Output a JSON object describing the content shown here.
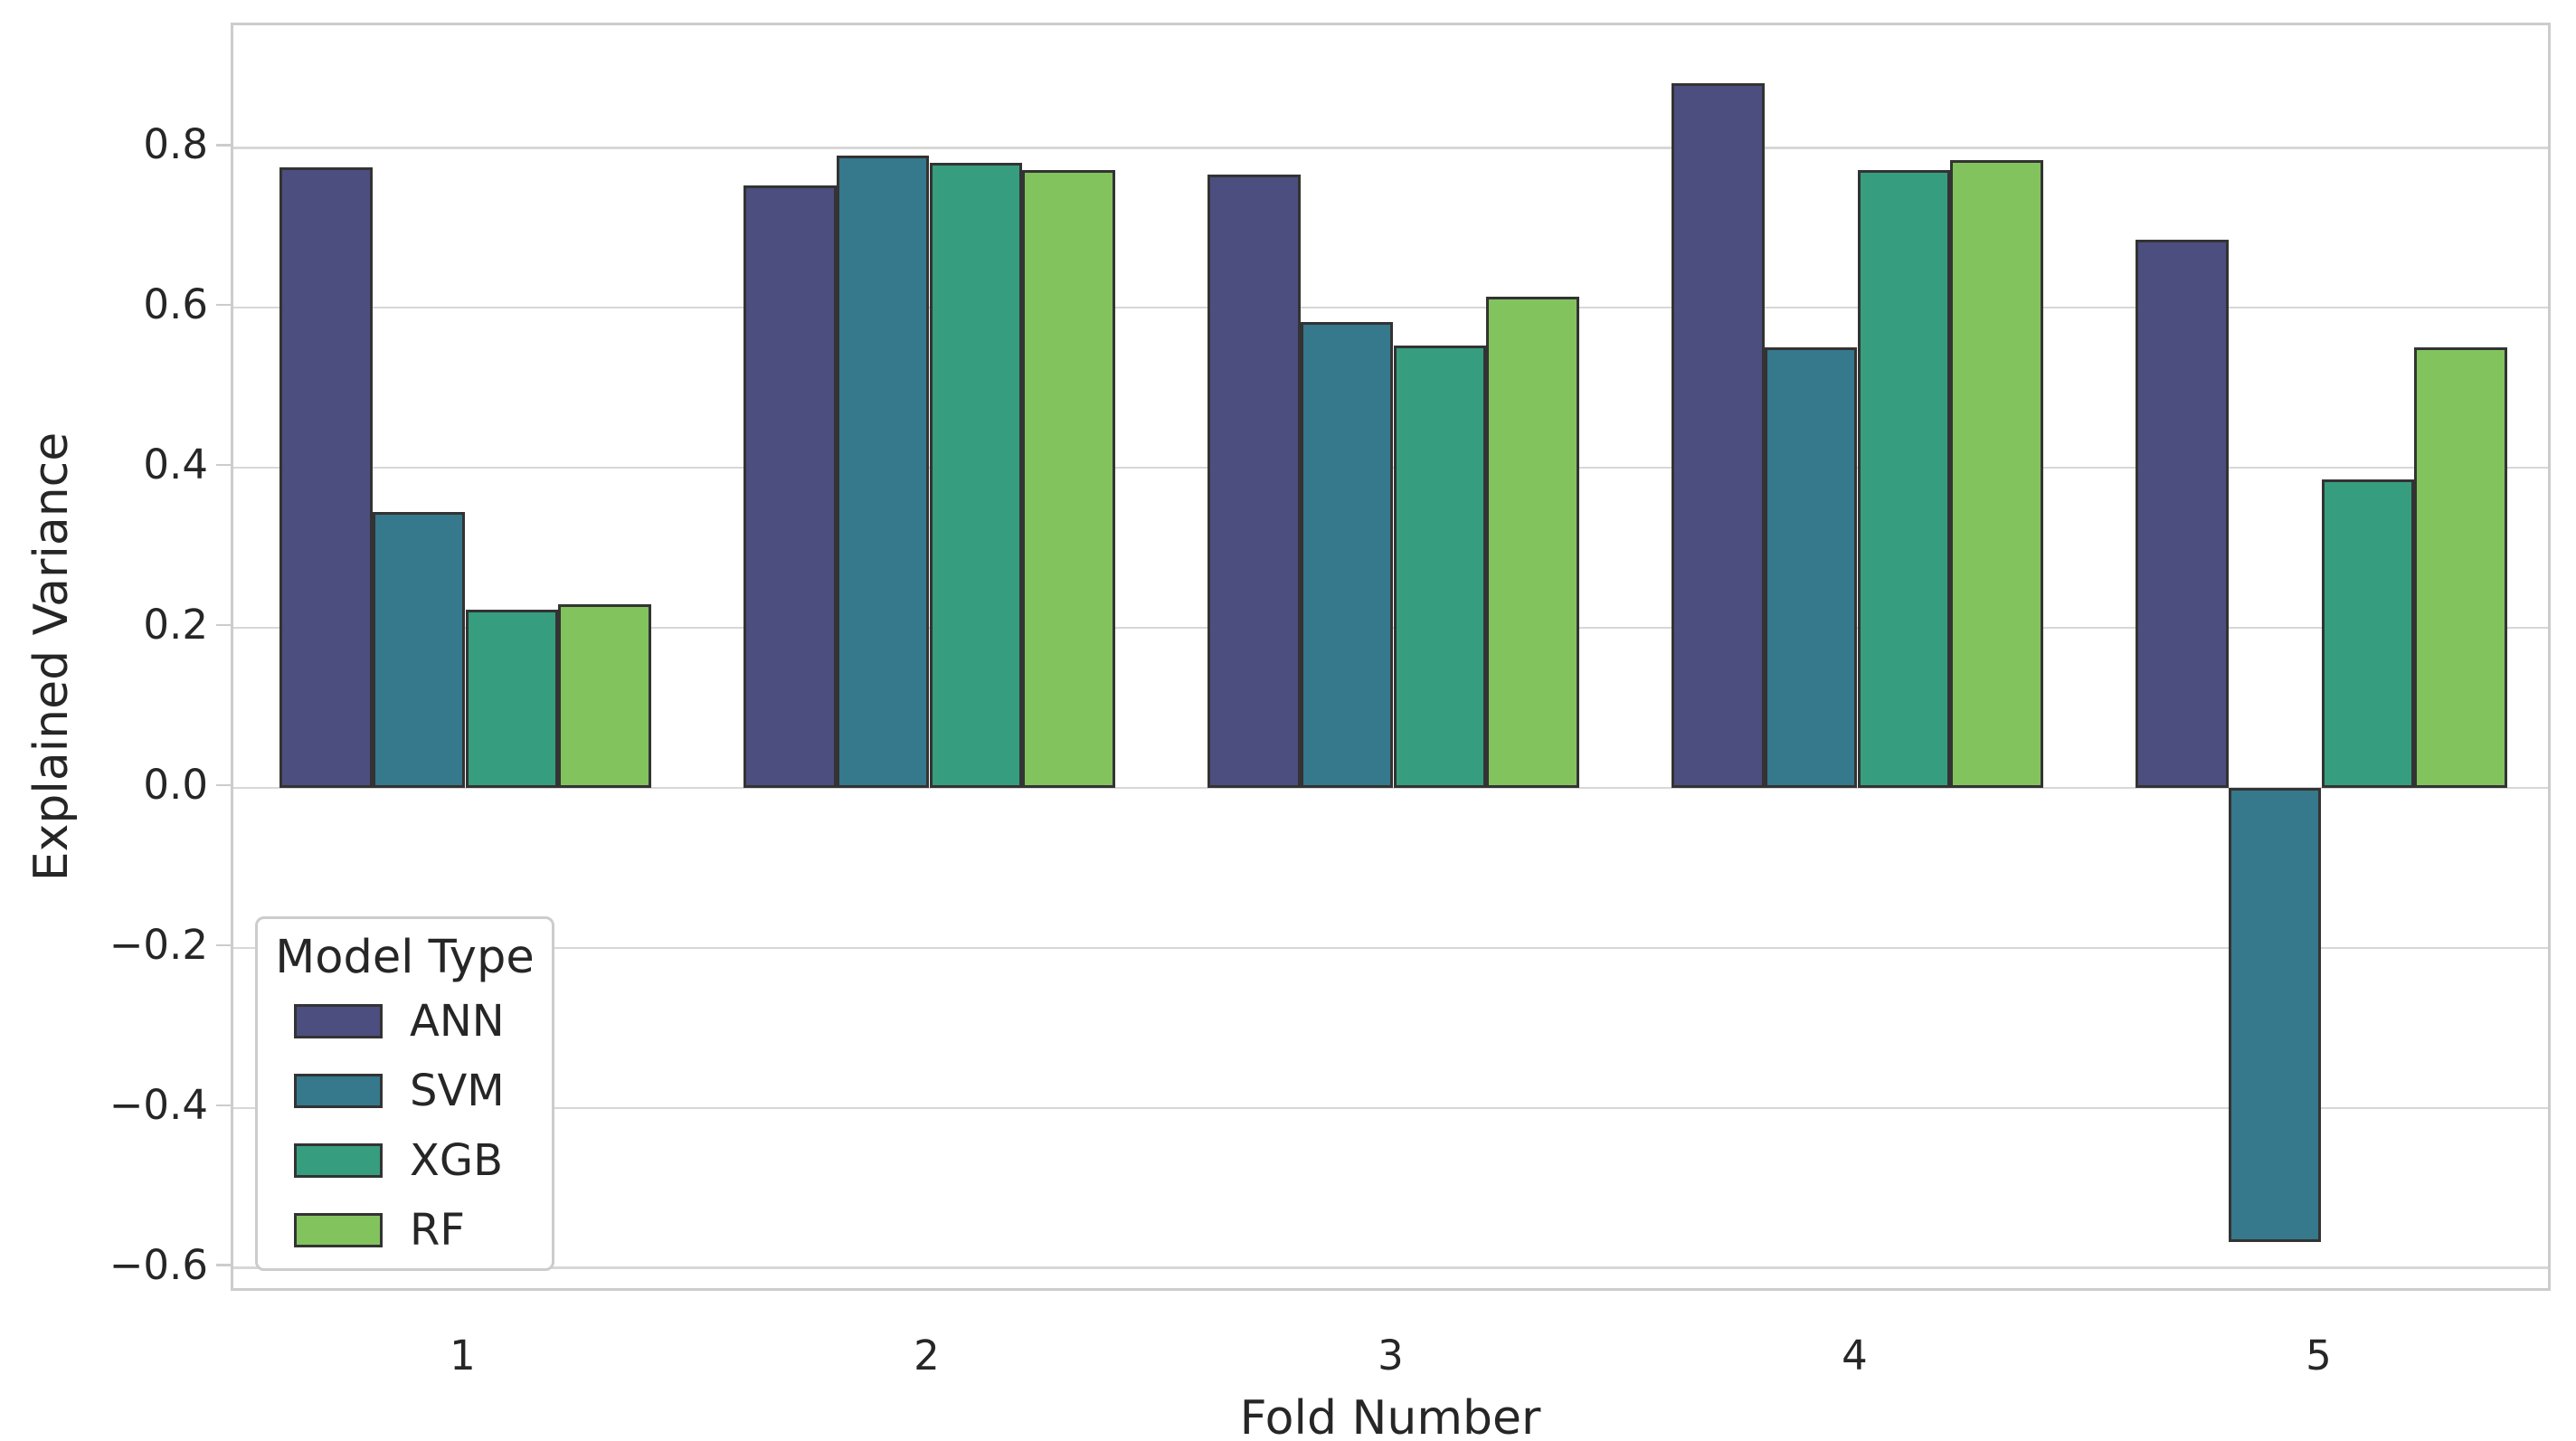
{
  "figure": {
    "background": "#ffffff",
    "text_color": "#262626"
  },
  "chart_data": {
    "type": "bar",
    "title": "",
    "xlabel": "Fold Number",
    "ylabel": "Explained Variance",
    "categories": [
      "1",
      "2",
      "3",
      "4",
      "5"
    ],
    "series": [
      {
        "name": "ANN",
        "color": "#4b4e7e",
        "values": [
          0.776,
          0.753,
          0.767,
          0.881,
          0.685
        ]
      },
      {
        "name": "SVM",
        "color": "#36788c",
        "values": [
          0.345,
          0.79,
          0.582,
          0.551,
          -0.568
        ]
      },
      {
        "name": "XGB",
        "color": "#379d7f",
        "values": [
          0.223,
          0.781,
          0.553,
          0.772,
          0.385
        ]
      },
      {
        "name": "RF",
        "color": "#82c35e",
        "values": [
          0.229,
          0.772,
          0.614,
          0.785,
          0.55
        ]
      }
    ],
    "bar_edge_color": "#333333",
    "group_width_fraction": 0.8,
    "ylim": [
      -0.632,
      0.953
    ],
    "yticks": [
      -0.6,
      -0.4,
      -0.2,
      0.0,
      0.2,
      0.4,
      0.6,
      0.8
    ],
    "grid": true,
    "grid_color": "#d7d7d7",
    "spine_color": "#cccccc",
    "legend": {
      "title": "Model Type",
      "position": "lower left"
    }
  }
}
